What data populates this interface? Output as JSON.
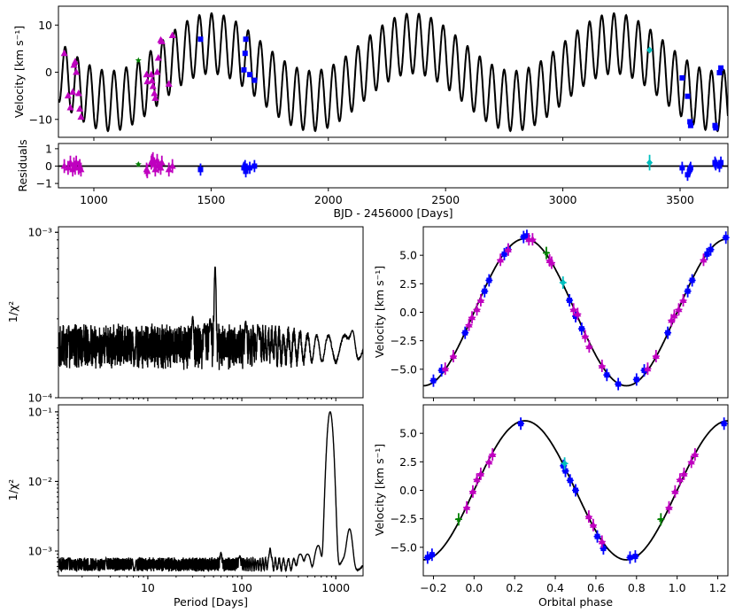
{
  "chart_data": [
    {
      "id": "rv_time",
      "type": "scatter",
      "xlabel": "",
      "ylabel": "Velocity [km s⁻¹]",
      "xlim": [
        849,
        3704
      ],
      "ylim": [
        -13.8,
        14
      ],
      "yticks": [
        {
          "v": 10,
          "label": "10"
        },
        {
          "v": 0,
          "label": "0"
        },
        {
          "v": -10,
          "label": "−10"
        }
      ],
      "xticks": [
        1000,
        1500,
        2000,
        2500,
        3000,
        3500
      ],
      "model": {
        "components": [
          {
            "K": 6.4,
            "P": 52,
            "T0": 1177
          },
          {
            "K": 6.1,
            "P": 860,
            "T0": 1285
          }
        ]
      },
      "series": [
        {
          "marker": "triangle",
          "color": "#bf00bf",
          "err": 0.4,
          "points": [
            [
              874,
              4.0,
              0.0
            ],
            [
              890,
              -5.0,
              -0.1
            ],
            [
              900,
              -7.5,
              0.2
            ],
            [
              910,
              -4.2,
              -0.2
            ],
            [
              915,
              1.5,
              0.1
            ],
            [
              920,
              2.2,
              -0.1
            ],
            [
              925,
              0.0,
              0.2
            ],
            [
              935,
              -4.5,
              -0.1
            ],
            [
              940,
              -7.8,
              0.0
            ],
            [
              945,
              -9.5,
              -0.2
            ],
            [
              1225,
              -0.5,
              -0.2
            ],
            [
              1228,
              -2.0,
              -0.3
            ],
            [
              1245,
              -0.5,
              0.2
            ],
            [
              1248,
              -1.8,
              0.3
            ],
            [
              1252,
              -3.0,
              0.4
            ],
            [
              1258,
              -4.5,
              0.1
            ],
            [
              1262,
              -5.5,
              -0.2
            ],
            [
              1270,
              0.0,
              0.3
            ],
            [
              1275,
              3.0,
              0.0
            ],
            [
              1285,
              6.8,
              -0.1
            ],
            [
              1290,
              6.5,
              0.2
            ],
            [
              1320,
              -2.5,
              -0.2
            ],
            [
              1335,
              7.8,
              0.0
            ]
          ]
        },
        {
          "marker": "star",
          "color": "#008000",
          "err": 0.1,
          "points": [
            [
              1190,
              2.5,
              0.1
            ]
          ]
        },
        {
          "marker": "square",
          "color": "#0000ff",
          "err": 0.35,
          "points": [
            [
              1455,
              7.0,
              -0.2
            ],
            [
              1640,
              0.5,
              -0.1
            ],
            [
              1645,
              4.0,
              0.0
            ],
            [
              1648,
              7.0,
              -0.3
            ],
            [
              1665,
              -0.5,
              -0.1
            ],
            [
              1685,
              -1.7,
              0.0
            ],
            [
              3509,
              -1.2,
              -0.1
            ],
            [
              3532,
              -5.1,
              -0.5
            ],
            [
              3542,
              -10.5,
              -0.2
            ],
            [
              3545,
              -11.3,
              -0.1
            ],
            [
              3649,
              -11.3,
              0.2
            ],
            [
              3652,
              -11.8,
              0.1
            ],
            [
              3668,
              -0.1,
              0.0
            ],
            [
              3674,
              0.9,
              0.2
            ]
          ]
        },
        {
          "marker": "diamond",
          "color": "#00bfbf",
          "err": 0.45,
          "points": [
            [
              3370,
              4.7,
              0.2
            ]
          ]
        }
      ]
    },
    {
      "id": "residuals",
      "type": "scatter",
      "xlabel": "BJD - 2456000 [Days]",
      "ylabel": "Residuals",
      "xlim": [
        849,
        3704
      ],
      "ylim": [
        -1.25,
        1.3
      ],
      "yticks": [
        {
          "v": 1,
          "label": "1"
        },
        {
          "v": 0,
          "label": "0"
        },
        {
          "v": -1,
          "label": "−1"
        }
      ],
      "xticks": [
        1000,
        1500,
        2000,
        2500,
        3000,
        3500
      ]
    },
    {
      "id": "periodogram_top",
      "type": "line",
      "ylabel": "1/χ²",
      "xscale": "log",
      "yscale": "log",
      "xlim": [
        1.12,
        1950
      ],
      "ylim": [
        0.0001,
        0.00108
      ],
      "yticks": [
        {
          "v": 0.001,
          "label": "10⁻³"
        },
        {
          "v": 0.0001,
          "label": "10⁻⁴"
        }
      ],
      "baseline": 0.0002,
      "noise": 0.3,
      "ripple_period": 2500,
      "peaks": [
        [
          52,
          0.00062
        ],
        [
          30,
          0.00031
        ],
        [
          46,
          0.0003
        ],
        [
          40,
          0.00028
        ],
        [
          110,
          0.00029
        ],
        [
          150,
          0.00027
        ],
        [
          1500,
          0.000255
        ]
      ]
    },
    {
      "id": "periodogram_bottom",
      "type": "line",
      "xlabel": "Period [Days]",
      "ylabel": "1/χ²",
      "xscale": "log",
      "yscale": "log",
      "xlim": [
        1.12,
        1950
      ],
      "ylim": [
        0.00044,
        0.126
      ],
      "xticks": [
        {
          "v": 10,
          "label": "10"
        },
        {
          "v": 100,
          "label": "100"
        },
        {
          "v": 1000,
          "label": "1000"
        }
      ],
      "yticks": [
        {
          "v": 0.1,
          "label": "10⁻¹"
        },
        {
          "v": 0.01,
          "label": "10⁻²"
        },
        {
          "v": 0.001,
          "label": "10⁻³"
        }
      ],
      "baseline": 0.00064,
      "noise": 0.12,
      "ripple_period": 2500,
      "peaks": [
        [
          870,
          0.1
        ],
        [
          1400,
          0.00208
        ],
        [
          650,
          0.0012
        ],
        [
          500,
          0.0009
        ],
        [
          420,
          0.0009
        ],
        [
          200,
          0.0011
        ],
        [
          60,
          0.00095
        ],
        [
          95,
          0.00085
        ]
      ]
    },
    {
      "id": "phase_top",
      "type": "scatter",
      "ylabel": "Velocity [km s⁻¹]",
      "xlim": [
        -0.25,
        1.25
      ],
      "ylim": [
        -7.5,
        7.5
      ],
      "model": {
        "K": 6.45
      },
      "yticks": [
        {
          "v": 5,
          "label": "5.0"
        },
        {
          "v": 2.5,
          "label": "2.5"
        },
        {
          "v": 0,
          "label": "0.0"
        },
        {
          "v": -2.5,
          "label": "−2.5"
        },
        {
          "v": -5,
          "label": "−5.0"
        }
      ],
      "series": [
        {
          "marker": "square",
          "color": "#0000ff",
          "points": [
            [
              -0.2,
              -6.0
            ],
            [
              -0.16,
              -5.1
            ],
            [
              -0.044,
              -1.8
            ],
            [
              0.052,
              1.85
            ],
            [
              0.074,
              2.8
            ],
            [
              0.149,
              5.1
            ],
            [
              0.168,
              5.5
            ],
            [
              0.244,
              6.6
            ],
            [
              0.26,
              6.7
            ],
            [
              0.47,
              1.05
            ],
            [
              0.5,
              -0.35
            ],
            [
              0.53,
              -1.45
            ],
            [
              0.654,
              -5.5
            ],
            [
              0.71,
              -6.3
            ],
            [
              0.8,
              -5.9
            ],
            [
              0.838,
              -5.1
            ],
            [
              0.954,
              -1.8
            ],
            [
              1.052,
              1.85
            ],
            [
              1.074,
              2.8
            ],
            [
              1.147,
              5.1
            ],
            [
              1.165,
              5.5
            ],
            [
              1.24,
              6.55
            ]
          ]
        },
        {
          "marker": "triangle",
          "color": "#bf00bf",
          "points": [
            [
              -0.142,
              -4.95
            ],
            [
              -0.102,
              -3.85
            ],
            [
              -0.025,
              -1.1
            ],
            [
              -0.01,
              -0.45
            ],
            [
              0.014,
              0.25
            ],
            [
              0.033,
              1.05
            ],
            [
              0.13,
              4.6
            ],
            [
              0.168,
              5.5
            ],
            [
              0.27,
              6.4
            ],
            [
              0.288,
              6.4
            ],
            [
              0.372,
              4.55
            ],
            [
              0.382,
              4.35
            ],
            [
              0.49,
              0.25
            ],
            [
              0.51,
              -0.15
            ],
            [
              0.547,
              -2.1
            ],
            [
              0.567,
              -3.0
            ],
            [
              0.63,
              -4.7
            ],
            [
              0.855,
              -4.95
            ],
            [
              0.896,
              -3.85
            ],
            [
              0.972,
              -0.7
            ],
            [
              0.986,
              -0.3
            ],
            [
              1.008,
              0.25
            ],
            [
              1.03,
              1.05
            ],
            [
              1.13,
              4.6
            ]
          ]
        },
        {
          "marker": "star",
          "color": "#008000",
          "points": [
            [
              0.356,
              5.2
            ]
          ]
        },
        {
          "marker": "diamond",
          "color": "#00bfbf",
          "points": [
            [
              0.438,
              2.6
            ]
          ]
        }
      ]
    },
    {
      "id": "phase_bottom",
      "type": "scatter",
      "xlabel": "Orbital phase",
      "ylabel": "Velocity [km s⁻¹]",
      "xlim": [
        -0.25,
        1.25
      ],
      "ylim": [
        -7.5,
        7.5
      ],
      "model": {
        "K": 6.1
      },
      "xticks": [
        {
          "v": -0.2,
          "label": "−0.2"
        },
        {
          "v": 0,
          "label": "0.0"
        },
        {
          "v": 0.2,
          "label": "0.2"
        },
        {
          "v": 0.4,
          "label": "0.4"
        },
        {
          "v": 0.6,
          "label": "0.6"
        },
        {
          "v": 0.8,
          "label": "0.8"
        },
        {
          "v": 1.0,
          "label": "1.0"
        },
        {
          "v": 1.2,
          "label": "1.2"
        }
      ],
      "yticks": [
        {
          "v": 5,
          "label": "5.0"
        },
        {
          "v": 2.5,
          "label": "2.5"
        },
        {
          "v": 0,
          "label": "0.0"
        },
        {
          "v": -2.5,
          "label": "−2.5"
        },
        {
          "v": -5,
          "label": "−5.0"
        }
      ],
      "series": [
        {
          "marker": "square",
          "color": "#0000ff",
          "points": [
            [
              -0.229,
              -5.9
            ],
            [
              -0.207,
              -5.65
            ],
            [
              0.23,
              5.85
            ],
            [
              0.44,
              2.15
            ],
            [
              0.45,
              1.7
            ],
            [
              0.473,
              0.87
            ],
            [
              0.5,
              0.0
            ],
            [
              0.607,
              -4.05
            ],
            [
              0.637,
              -5.1
            ],
            [
              0.768,
              -5.9
            ],
            [
              0.794,
              -5.8
            ],
            [
              1.231,
              5.85
            ]
          ]
        },
        {
          "marker": "triangle",
          "color": "#bf00bf",
          "points": [
            [
              -0.036,
              -1.5
            ],
            [
              -0.006,
              -0.1
            ],
            [
              0.014,
              0.95
            ],
            [
              0.033,
              1.45
            ],
            [
              0.074,
              2.5
            ],
            [
              0.091,
              3.15
            ],
            [
              0.565,
              -2.3
            ],
            [
              0.587,
              -3.05
            ],
            [
              0.63,
              -4.5
            ],
            [
              0.96,
              -1.5
            ],
            [
              0.99,
              -0.1
            ],
            [
              1.014,
              0.95
            ],
            [
              1.034,
              1.45
            ],
            [
              1.07,
              2.5
            ],
            [
              1.088,
              3.15
            ]
          ]
        },
        {
          "marker": "star",
          "color": "#008000",
          "points": [
            [
              -0.076,
              -2.55
            ],
            [
              0.92,
              -2.55
            ]
          ]
        },
        {
          "marker": "diamond",
          "color": "#00bfbf",
          "points": [
            [
              0.446,
              2.35
            ]
          ]
        }
      ]
    }
  ]
}
